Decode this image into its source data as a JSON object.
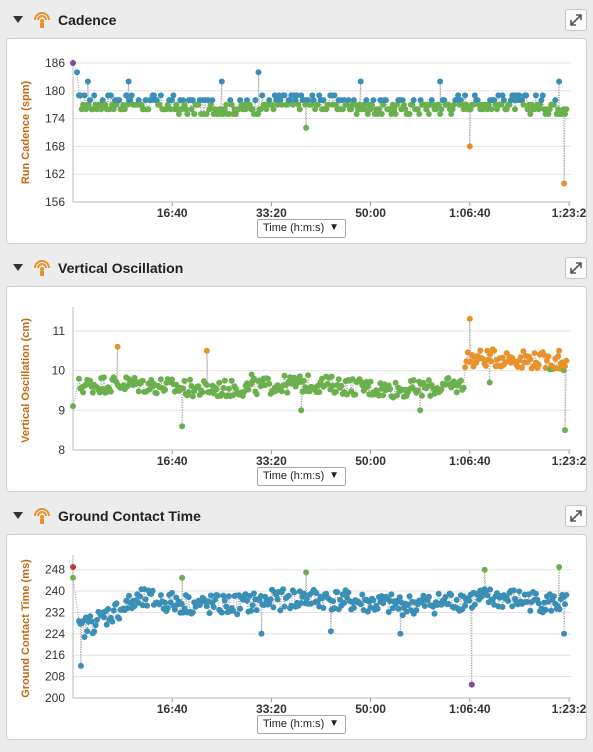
{
  "dropdown_label": "Time (h:m:s)",
  "colors": {
    "accent_label": "#c26a10",
    "blue": "#3a8fb7",
    "green": "#6ab04c",
    "orange": "#e8922a",
    "purple": "#7b4f9a",
    "red": "#c0392b",
    "gridline": "#e3e3e3",
    "connector": "#9a9a9a"
  },
  "icons": {
    "collapse": "chevron-down-icon",
    "sensor": "sensor-icon",
    "expand": "expand-icon"
  },
  "chart_data": [
    {
      "type": "scatter",
      "title": "Cadence",
      "ylabel": "Run Cadence (spm)",
      "xlabel": "",
      "xlim": [
        0,
        5020
      ],
      "ylim": [
        156,
        186
      ],
      "yticks": [
        156,
        162,
        168,
        174,
        180,
        186
      ],
      "xticks": [
        {
          "v": 1000,
          "label": "16:40"
        },
        {
          "v": 2000,
          "label": "33:20"
        },
        {
          "v": 3000,
          "label": "50:00"
        },
        {
          "v": 4000,
          "label": "1:06:40"
        },
        {
          "v": 5000,
          "label": "1:23:2"
        }
      ],
      "grid": true,
      "color_bands": [
        {
          "min": 0,
          "max": 170,
          "color": "orange"
        },
        {
          "min": 170,
          "max": 178,
          "color": "green"
        },
        {
          "min": 178,
          "max": 999,
          "color": "blue"
        }
      ],
      "base": 177,
      "amp": 1.8,
      "quant": 1,
      "outliers": [
        [
          0,
          186,
          "purple"
        ],
        [
          40,
          184
        ],
        [
          150,
          182
        ],
        [
          560,
          182
        ],
        [
          1500,
          182
        ],
        [
          1870,
          184
        ],
        [
          2350,
          172
        ],
        [
          2900,
          182
        ],
        [
          3700,
          182
        ],
        [
          4000,
          168
        ],
        [
          4450,
          178
        ],
        [
          4900,
          182
        ],
        [
          4950,
          160,
          "orange"
        ]
      ],
      "extra_green": [
        [
          2350,
          172
        ],
        [
          4000,
          168
        ]
      ]
    },
    {
      "type": "scatter",
      "title": "Vertical Oscillation",
      "ylabel": "Vertical Oscillation (cm)",
      "xlabel": "",
      "xlim": [
        0,
        5020
      ],
      "ylim": [
        8,
        11.5
      ],
      "yticks": [
        8,
        9,
        10,
        11
      ],
      "xticks": [
        {
          "v": 1000,
          "label": "16:40"
        },
        {
          "v": 2000,
          "label": "33:20"
        },
        {
          "v": 3000,
          "label": "50:00"
        },
        {
          "v": 4000,
          "label": "1:06:40"
        },
        {
          "v": 5000,
          "label": "1:23:2"
        }
      ],
      "grid": true,
      "color_bands": [
        {
          "min": 0,
          "max": 10.05,
          "color": "green"
        },
        {
          "min": 10.05,
          "max": 99,
          "color": "orange"
        }
      ],
      "base": 9.6,
      "amp": 0.22,
      "quant": 0,
      "late_shift": {
        "from": 3950,
        "base": 10.25
      },
      "outliers": [
        [
          0,
          9.1
        ],
        [
          450,
          10.6
        ],
        [
          1100,
          8.6
        ],
        [
          1350,
          10.5
        ],
        [
          1800,
          9.9
        ],
        [
          2300,
          9.0
        ],
        [
          3500,
          9.0
        ],
        [
          4000,
          11.3
        ],
        [
          4200,
          9.7
        ],
        [
          4900,
          10.5
        ],
        [
          4960,
          8.5
        ]
      ]
    },
    {
      "type": "scatter",
      "title": "Ground Contact Time",
      "ylabel": "Ground Contact Time (ms)",
      "xlabel": "",
      "xlim": [
        0,
        5020
      ],
      "ylim": [
        200,
        252
      ],
      "yticks": [
        200,
        208,
        216,
        224,
        232,
        240,
        248
      ],
      "xticks": [
        {
          "v": 1000,
          "label": "16:40"
        },
        {
          "v": 2000,
          "label": "33:20"
        },
        {
          "v": 3000,
          "label": "50:00"
        },
        {
          "v": 4000,
          "label": "1:06:40"
        },
        {
          "v": 5000,
          "label": "1:23:2"
        }
      ],
      "grid": true,
      "color_bands": [
        {
          "min": 0,
          "max": 241,
          "color": "blue"
        },
        {
          "min": 241,
          "max": 999,
          "color": "green"
        }
      ],
      "base": 236,
      "amp": 4,
      "quant": 0,
      "ramp": {
        "to": 700,
        "start": 224
      },
      "outliers": [
        [
          0,
          249,
          "red"
        ],
        [
          0,
          245,
          "green"
        ],
        [
          80,
          212
        ],
        [
          1100,
          245,
          "green"
        ],
        [
          1900,
          224
        ],
        [
          2350,
          247,
          "green"
        ],
        [
          2600,
          225
        ],
        [
          3300,
          224
        ],
        [
          4020,
          205,
          "purple"
        ],
        [
          4150,
          248,
          "green"
        ],
        [
          4900,
          249,
          "green"
        ],
        [
          4950,
          224
        ]
      ]
    }
  ]
}
